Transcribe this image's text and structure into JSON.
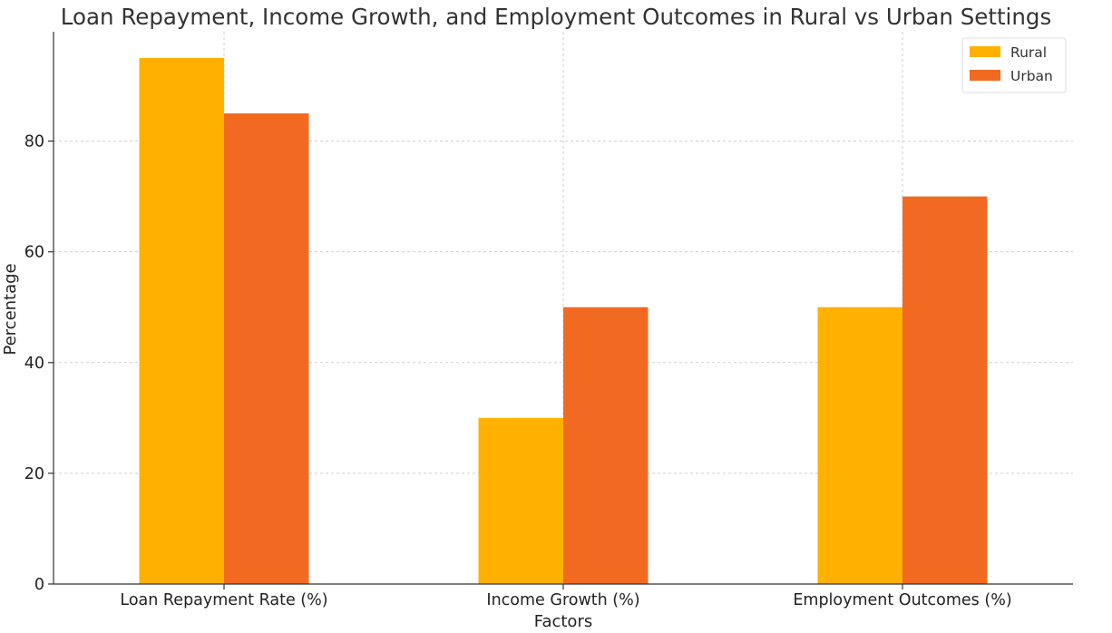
{
  "chart_data": {
    "type": "bar",
    "title": "Loan Repayment, Income Growth, and Employment Outcomes in Rural vs Urban Settings",
    "xlabel": "Factors",
    "ylabel": "Percentage",
    "categories": [
      "Loan Repayment Rate (%)",
      "Income Growth (%)",
      "Employment Outcomes (%)"
    ],
    "series": [
      {
        "name": "Rural",
        "values": [
          95,
          30,
          50
        ],
        "color": "#FFB000"
      },
      {
        "name": "Urban",
        "values": [
          85,
          50,
          70
        ],
        "color": "#F26A21"
      }
    ],
    "ylim": [
      0,
      99.75
    ],
    "yticks": [
      0,
      20,
      40,
      60,
      80
    ],
    "grid": true,
    "legend_position": "top-right"
  }
}
